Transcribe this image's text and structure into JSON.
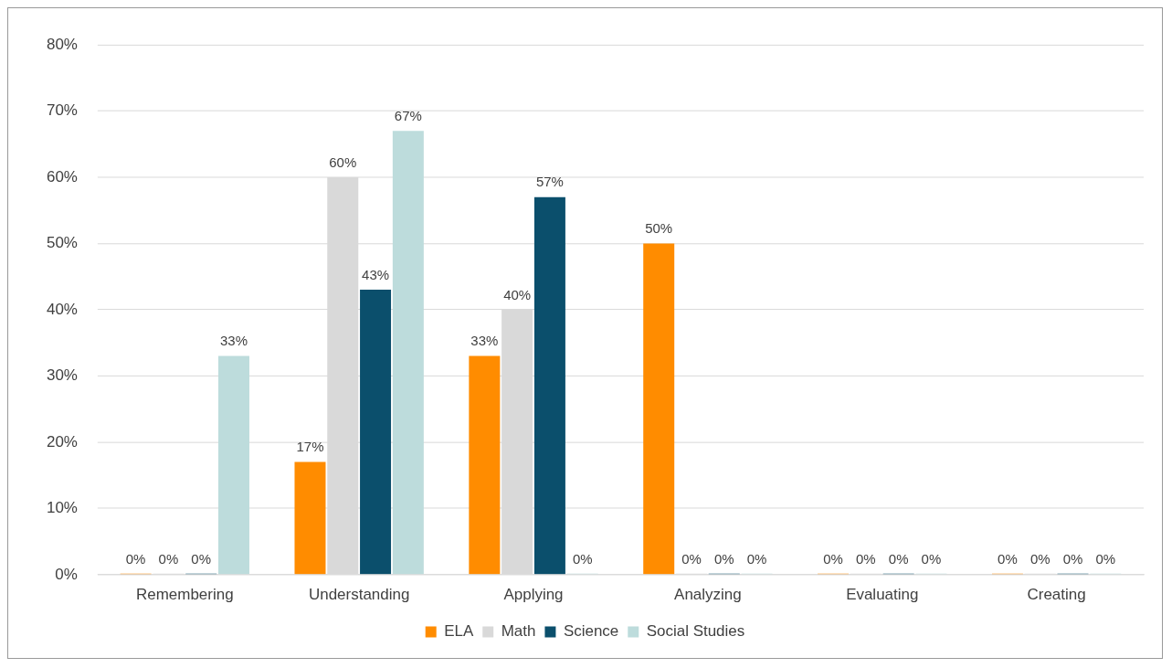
{
  "chart_data": {
    "type": "bar",
    "categories": [
      "Remembering",
      "Understanding",
      "Applying",
      "Analyzing",
      "Evaluating",
      "Creating"
    ],
    "series": [
      {
        "name": "ELA",
        "color": "#ff8c00",
        "values": [
          0,
          17,
          33,
          50,
          0,
          0
        ],
        "value_labels": [
          "0%",
          "17%",
          "33%",
          "50%",
          "0%",
          "0%"
        ]
      },
      {
        "name": "Math",
        "color": "#d9d9d9",
        "values": [
          0,
          60,
          40,
          0,
          0,
          0
        ],
        "value_labels": [
          "0%",
          "60%",
          "40%",
          "0%",
          "0%",
          "0%"
        ]
      },
      {
        "name": "Science",
        "color": "#0b4f6c",
        "values": [
          0,
          43,
          57,
          0,
          0,
          0
        ],
        "value_labels": [
          "0%",
          "43%",
          "57%",
          "0%",
          "0%",
          "0%"
        ]
      },
      {
        "name": "Social Studies",
        "color": "#bddcdc",
        "values": [
          33,
          67,
          0,
          0,
          0,
          0
        ],
        "value_labels": [
          "33%",
          "67%",
          "0%",
          "0%",
          "0%",
          "0%"
        ]
      }
    ],
    "ylim": [
      0,
      80
    ],
    "yticks": [
      {
        "value": 0,
        "label": "0%"
      },
      {
        "value": 10,
        "label": "10%"
      },
      {
        "value": 20,
        "label": "20%"
      },
      {
        "value": 30,
        "label": "30%"
      },
      {
        "value": 40,
        "label": "40%"
      },
      {
        "value": 50,
        "label": "50%"
      },
      {
        "value": 60,
        "label": "60%"
      },
      {
        "value": 70,
        "label": "70%"
      },
      {
        "value": 80,
        "label": "80%"
      }
    ],
    "grid": "y",
    "legend": "bottom"
  }
}
